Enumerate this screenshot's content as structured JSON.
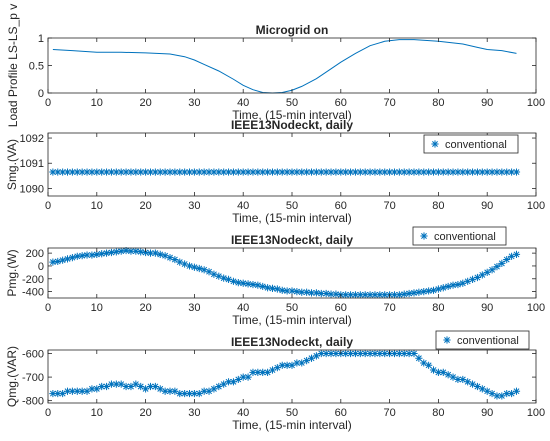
{
  "colors": {
    "series": "#0072BD",
    "axis": "#262626",
    "background": "#ffffff"
  },
  "chart_data": [
    {
      "type": "line",
      "title": "Microgrid on",
      "xlabel": "Time, (15-min interval)",
      "ylabel": "Load Profile LS-LS_p v",
      "xlim": [
        0,
        100
      ],
      "ylim": [
        0,
        1
      ],
      "xticks": [
        "0",
        "10",
        "20",
        "30",
        "40",
        "50",
        "60",
        "70",
        "80",
        "90",
        "100"
      ],
      "yticks": [
        "0",
        "0.5",
        "1"
      ],
      "legend": null,
      "series": [
        {
          "marker": "none",
          "x": [
            1,
            5,
            10,
            15,
            20,
            25,
            28,
            30,
            32,
            35,
            38,
            40,
            42,
            44,
            46,
            48,
            50,
            52,
            55,
            58,
            60,
            63,
            66,
            69,
            72,
            75,
            80,
            85,
            88,
            90,
            93,
            96
          ],
          "y": [
            0.79,
            0.77,
            0.74,
            0.74,
            0.73,
            0.71,
            0.66,
            0.6,
            0.52,
            0.4,
            0.25,
            0.14,
            0.06,
            0.01,
            0.0,
            0.01,
            0.05,
            0.12,
            0.26,
            0.44,
            0.56,
            0.72,
            0.86,
            0.94,
            0.97,
            0.97,
            0.94,
            0.89,
            0.83,
            0.79,
            0.77,
            0.72
          ]
        }
      ]
    },
    {
      "type": "line",
      "title": "IEEE13Nodeckt, daily",
      "xlabel": "Time, (15-min interval)",
      "ylabel": "Smg.(VA)",
      "xlim": [
        0,
        100
      ],
      "ylim": [
        1089.7,
        1092.2
      ],
      "xticks": [
        "0",
        "10",
        "20",
        "30",
        "40",
        "50",
        "60",
        "70",
        "80",
        "90",
        "100"
      ],
      "yticks": [
        "1090",
        "1091",
        "1092"
      ],
      "legend": {
        "label": "conventional",
        "position": "top-right"
      },
      "series": [
        {
          "name": "conventional",
          "marker": "asterisk",
          "x_start": 1,
          "x_end": 96,
          "y": [
            1090.65
          ]
        }
      ]
    },
    {
      "type": "line",
      "title": "IEEE13Nodeckt, daily",
      "xlabel": "Time, (15-min interval)",
      "ylabel": "Pmg.(W)",
      "xlim": [
        0,
        100
      ],
      "ylim": [
        -500,
        280
      ],
      "xticks": [
        "0",
        "10",
        "20",
        "30",
        "40",
        "50",
        "60",
        "70",
        "80",
        "90",
        "100"
      ],
      "yticks": [
        "-400",
        "-200",
        "0",
        "200"
      ],
      "legend": {
        "label": "conventional",
        "position": "top-right"
      },
      "series": [
        {
          "name": "conventional",
          "marker": "asterisk",
          "x_start": 1,
          "x_end": 96,
          "y": [
            60,
            70,
            90,
            110,
            130,
            150,
            160,
            170,
            170,
            180,
            190,
            200,
            210,
            220,
            230,
            240,
            230,
            230,
            220,
            210,
            200,
            200,
            180,
            160,
            130,
            100,
            60,
            30,
            0,
            -20,
            -40,
            -60,
            -90,
            -130,
            -160,
            -190,
            -210,
            -240,
            -260,
            -270,
            -280,
            -290,
            -300,
            -320,
            -340,
            -350,
            -360,
            -380,
            -390,
            -390,
            -400,
            -410,
            -410,
            -420,
            -420,
            -430,
            -430,
            -440,
            -440,
            -450,
            -450,
            -450,
            -450,
            -450,
            -450,
            -450,
            -450,
            -450,
            -450,
            -450,
            -450,
            -450,
            -440,
            -430,
            -420,
            -410,
            -400,
            -390,
            -380,
            -360,
            -340,
            -320,
            -300,
            -290,
            -270,
            -240,
            -210,
            -180,
            -140,
            -100,
            -60,
            -10,
            40,
            100,
            150,
            180
          ]
        }
      ]
    },
    {
      "type": "line",
      "title": "IEEE13Nodeckt, daily",
      "xlabel": "Time, (15-min interval)",
      "ylabel": "Qmg.(VAR)",
      "xlim": [
        0,
        100
      ],
      "ylim": [
        -810,
        -585
      ],
      "xticks": [
        "0",
        "10",
        "20",
        "30",
        "40",
        "50",
        "60",
        "70",
        "80",
        "90",
        "100"
      ],
      "yticks": [
        "-800",
        "-700",
        "-600"
      ],
      "legend": {
        "label": "conventional",
        "position": "top-right"
      },
      "series": [
        {
          "name": "conventional",
          "marker": "asterisk",
          "x_start": 1,
          "x_end": 96,
          "y": [
            -770,
            -770,
            -770,
            -760,
            -760,
            -760,
            -760,
            -760,
            -750,
            -750,
            -740,
            -740,
            -730,
            -730,
            -730,
            -740,
            -740,
            -730,
            -740,
            -750,
            -740,
            -740,
            -750,
            -760,
            -760,
            -760,
            -770,
            -770,
            -770,
            -770,
            -770,
            -760,
            -760,
            -750,
            -740,
            -730,
            -720,
            -720,
            -710,
            -700,
            -700,
            -680,
            -680,
            -680,
            -680,
            -670,
            -660,
            -650,
            -650,
            -650,
            -640,
            -640,
            -630,
            -620,
            -610,
            -600,
            -600,
            -600,
            -600,
            -600,
            -600,
            -600,
            -600,
            -600,
            -600,
            -600,
            -600,
            -600,
            -600,
            -600,
            -600,
            -600,
            -600,
            -600,
            -600,
            -620,
            -640,
            -650,
            -670,
            -680,
            -680,
            -690,
            -700,
            -710,
            -710,
            -720,
            -730,
            -740,
            -750,
            -760,
            -770,
            -780,
            -780,
            -770,
            -770,
            -760
          ]
        }
      ]
    }
  ]
}
